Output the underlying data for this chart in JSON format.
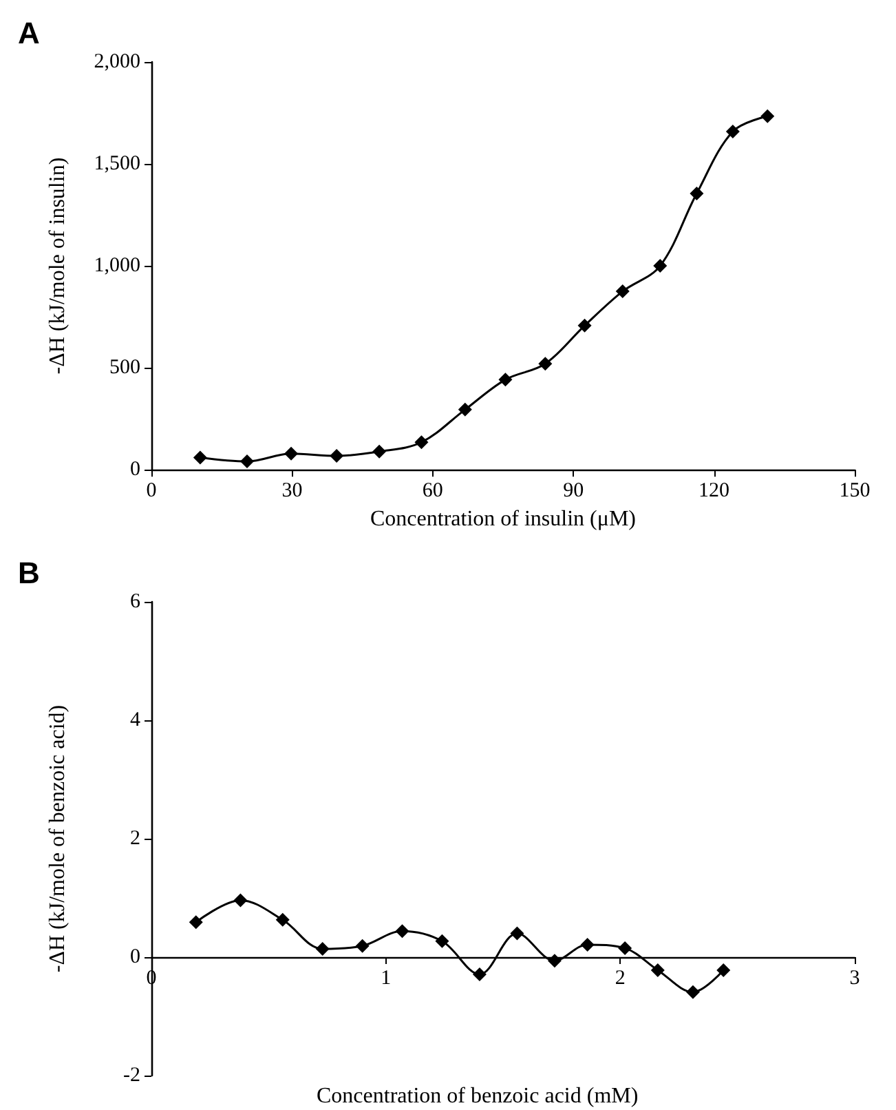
{
  "chart_data": [
    {
      "type": "line",
      "title": "A",
      "xlabel": "Concentration of insulin (μM)",
      "ylabel": "-ΔH (kJ/mole of insulin)",
      "x": [
        10.4,
        20.4,
        29.8,
        39.5,
        48.6,
        57.6,
        66.9,
        75.5,
        84.0,
        92.4,
        100.5,
        108.5,
        116.3,
        124.0,
        131.4
      ],
      "series": [
        {
          "color": "#000000",
          "values": [
            60,
            41,
            79,
            68,
            89,
            135,
            295,
            442,
            520,
            707,
            875,
            1000,
            1355,
            1659,
            1734
          ]
        }
      ],
      "xlim": [
        0,
        150
      ],
      "xticks": [
        0,
        30,
        60,
        90,
        120,
        150
      ],
      "ylim": [
        0,
        2000
      ],
      "yticks": [
        0,
        500,
        {
          "value": 1000,
          "label": "1,000"
        },
        {
          "value": 1500,
          "label": "1,500"
        },
        {
          "value": 2000,
          "label": "2,000"
        }
      ],
      "grid": false,
      "marker": "diamond",
      "line_style": "solid"
    },
    {
      "type": "line",
      "title": "B",
      "xlabel": "Concentration of benzoic acid (mM)",
      "ylabel": "-ΔH (kJ/mole of benzoic acid)",
      "x": [
        0.19,
        0.38,
        0.56,
        0.73,
        0.9,
        1.07,
        1.24,
        1.4,
        1.56,
        1.72,
        1.86,
        2.02,
        2.16,
        2.31,
        2.44
      ],
      "series": [
        {
          "color": "#000000",
          "values": [
            0.59,
            0.96,
            0.63,
            0.14,
            0.19,
            0.44,
            0.27,
            -0.29,
            0.4,
            -0.06,
            0.21,
            0.15,
            -0.22,
            -0.59,
            -0.22
          ]
        }
      ],
      "xlim": [
        0,
        3
      ],
      "xticks": [
        0,
        1,
        2,
        3
      ],
      "ylim": [
        -2,
        6
      ],
      "yticks": [
        -2,
        0,
        2,
        4,
        6
      ],
      "grid": false,
      "marker": "diamond",
      "line_style": "solid"
    }
  ]
}
